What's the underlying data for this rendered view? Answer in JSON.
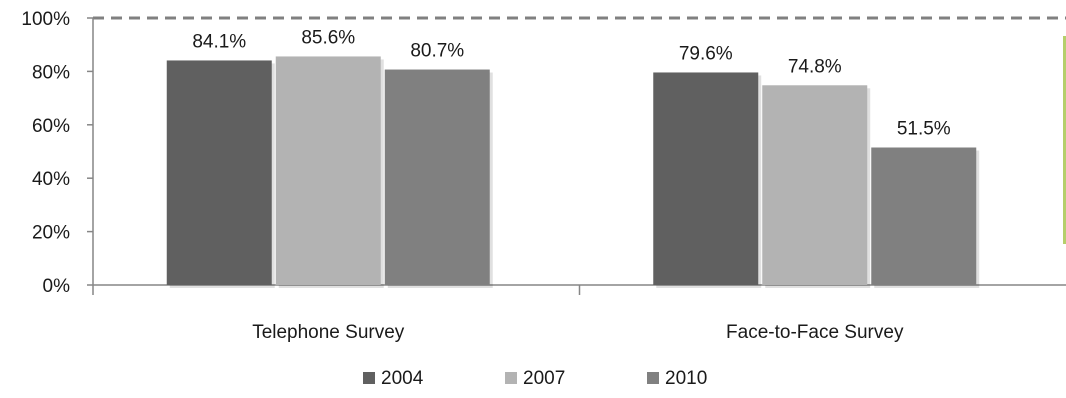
{
  "chart_data": {
    "type": "bar",
    "categories": [
      "Telephone Survey",
      "Face-to-Face Survey"
    ],
    "series": [
      {
        "name": "2004",
        "values": [
          84.1,
          79.6
        ],
        "labels": [
          "84.1%",
          "79.6%"
        ],
        "color": "#606060"
      },
      {
        "name": "2007",
        "values": [
          85.6,
          74.8
        ],
        "labels": [
          "85.6%",
          "74.8%"
        ],
        "color": "#b3b3b3"
      },
      {
        "name": "2010",
        "values": [
          80.7,
          51.5
        ],
        "labels": [
          "80.7%",
          "51.5%"
        ],
        "color": "#808080"
      }
    ],
    "ylim": [
      0,
      100
    ],
    "yticks": [
      0,
      20,
      40,
      60,
      80,
      100
    ],
    "ytick_labels": [
      "0%",
      "20%",
      "40%",
      "60%",
      "80%",
      "100%"
    ],
    "reference_line": {
      "value": 100,
      "style": "dashed",
      "color": "#808080"
    },
    "legend_position": "bottom-center",
    "grid": false,
    "title": "",
    "xlabel": "",
    "ylabel": ""
  }
}
